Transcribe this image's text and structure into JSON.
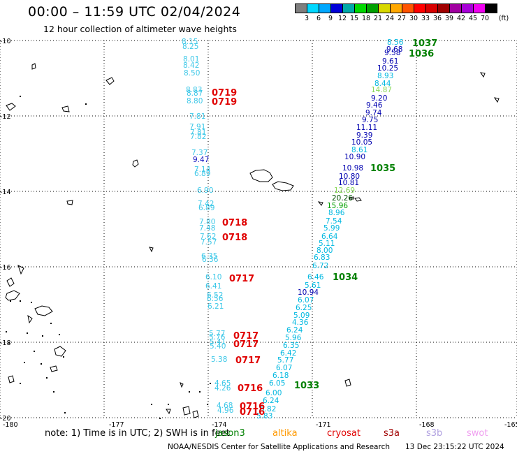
{
  "header": {
    "title": "00:00 – 11:59 UTC 02/04/2024",
    "subtitle": "12 hour collection of altimeter wave heights"
  },
  "legend": {
    "colors": [
      "#7f7f7f",
      "#00d8ff",
      "#00a8ff",
      "#0000d8",
      "#00a8a8",
      "#00d800",
      "#00a000",
      "#d8d800",
      "#ffa800",
      "#ff5400",
      "#ff0000",
      "#d80000",
      "#a00000",
      "#a000a0",
      "#a800d8",
      "#f000f0",
      "#000000"
    ],
    "labels": [
      "3",
      "6",
      "9",
      "12",
      "15",
      "18",
      "21",
      "24",
      "27",
      "30",
      "33",
      "36",
      "39",
      "42",
      "45",
      "70"
    ],
    "unit": "(ft)"
  },
  "map": {
    "lon_range": [
      -180,
      -165
    ],
    "lat_range": [
      -20,
      -10
    ],
    "x_ticks": [
      "-180",
      "-177",
      "-174",
      "-171",
      "-168",
      "-165"
    ],
    "y_ticks": [
      "-10",
      "-12",
      "-14",
      "-16",
      "-18",
      "-20"
    ],
    "grid": "dotted",
    "track_a": {
      "color": "#3ec8e8",
      "labels": [
        "8.15",
        "8.25",
        "8.01",
        "8.42",
        "8.50",
        "8.83",
        "8.87",
        "8.80",
        "7.81",
        "7.91",
        "7.81",
        "7.82",
        "7.37",
        "9.47",
        "7.14",
        "6.89",
        "6.90",
        "7.42",
        "6.89",
        "7.80",
        "7.48",
        "7.62",
        "7.57",
        "6.35",
        "6.36",
        "6.10",
        "6.41",
        "6.52",
        "6.56",
        "6.21",
        "5.77",
        "5.76",
        "5.41",
        "5.40",
        "5.38",
        "4.65",
        "4.26",
        "4.68",
        "4.96"
      ],
      "dark": [
        13
      ]
    },
    "track_b": {
      "color": "#00b8e0",
      "labels": [
        "8.56",
        "9.68",
        "9.58",
        "9.61",
        "10.25",
        "8.93",
        "8.44",
        "14.87",
        "9.20",
        "9.46",
        "9.74",
        "9.75",
        "11.11",
        "9.39",
        "10.05",
        "8.61",
        "10.90",
        "10.98",
        "10.80",
        "10.81",
        "12.69",
        "20.26",
        "15.96",
        "8.96",
        "7.54",
        "5.99",
        "6.64",
        "5.11",
        "8.00",
        "6.83",
        "6.72",
        "6.46",
        "5.61",
        "10.94",
        "6.07",
        "6.25",
        "5.09",
        "4.36",
        "6.24",
        "5.96",
        "6.35",
        "6.42",
        "5.77",
        "6.07",
        "6.18",
        "6.05",
        "6.00",
        "6.24",
        "5.82",
        "5.83"
      ],
      "dark": [
        1,
        2,
        3,
        4,
        8,
        9,
        10,
        11,
        12,
        13,
        14,
        16,
        17,
        18,
        19,
        21,
        33
      ],
      "green": [
        7,
        20,
        21,
        22
      ]
    },
    "pass_labels_a": [
      "0719",
      "0719",
      "0718",
      "0718",
      "0717",
      "0717",
      "0717",
      "0717",
      "0716",
      "0716",
      "0716"
    ],
    "pass_labels_b": [
      "1037",
      "1036",
      "1035",
      "1034",
      "1033"
    ],
    "pass_color_a": "#e00000",
    "pass_color_b": "#008000"
  },
  "footer": {
    "note": "note:  1) Time is in UTC;  2) SWH is in feet",
    "missions": [
      {
        "name": "jason3",
        "color": "#008000"
      },
      {
        "name": "altika",
        "color": "#ff9900"
      },
      {
        "name": "cryosat",
        "color": "#e00000"
      },
      {
        "name": "s3a",
        "color": "#a00000"
      },
      {
        "name": "s3b",
        "color": "#b0a0e0"
      },
      {
        "name": "swot",
        "color": "#f0a0f0"
      }
    ],
    "credit": "NOAA/NESDIS Center for Satellite Applications and Research",
    "timestamp": "13 Dec 23:15:22 UTC 2024"
  }
}
